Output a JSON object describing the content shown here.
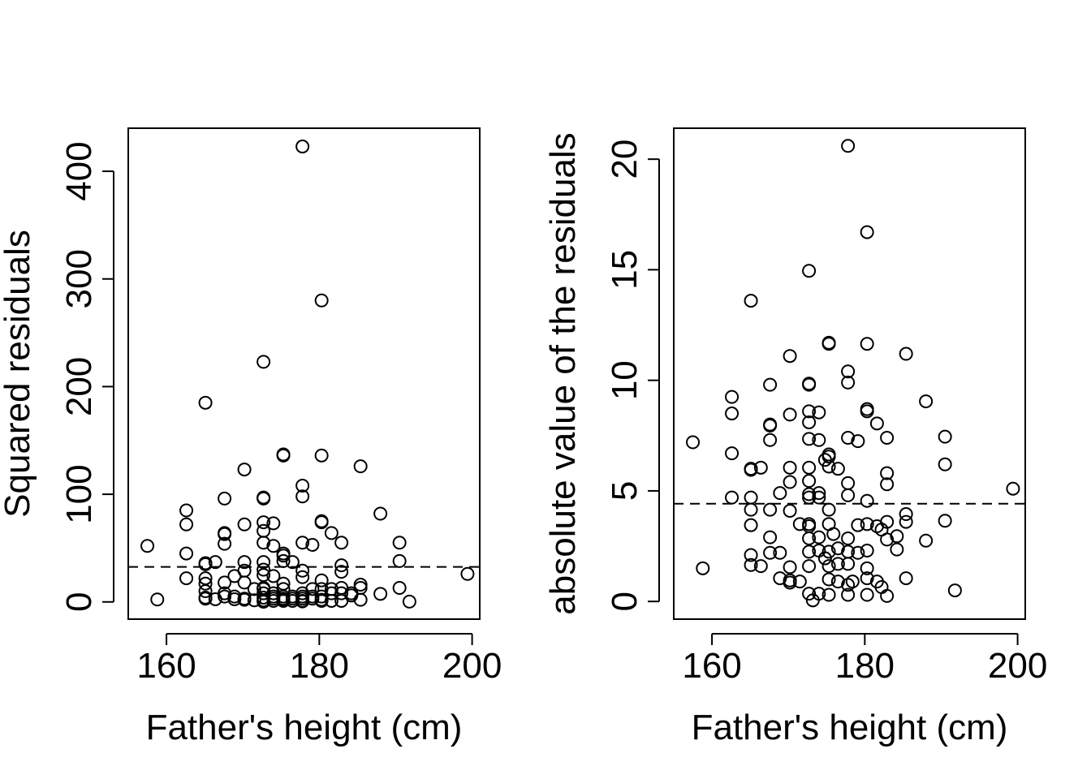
{
  "chart_data": [
    {
      "type": "scatter",
      "xlabel": "Father's height (cm)",
      "ylabel": "Squared residuals",
      "xlim": [
        155,
        201
      ],
      "ylim": [
        -16,
        440
      ],
      "xticks": [
        160,
        180,
        200
      ],
      "yticks": [
        0,
        100,
        200,
        300,
        400
      ],
      "xtick_labels": [
        "160",
        "180",
        "200"
      ],
      "ytick_labels": [
        "0",
        "100",
        "200",
        "300",
        "400"
      ],
      "reference_line": {
        "style": "dashed",
        "y": 32.5
      },
      "grid": false,
      "legend": "none",
      "marker": "open-circle",
      "points": [
        [
          157.5,
          52
        ],
        [
          158.8,
          2.3
        ],
        [
          162.6,
          85
        ],
        [
          162.6,
          72
        ],
        [
          162.6,
          45
        ],
        [
          162.6,
          22
        ],
        [
          165.1,
          185
        ],
        [
          165.1,
          36
        ],
        [
          165.1,
          35
        ],
        [
          165.1,
          22
        ],
        [
          165.1,
          17
        ],
        [
          165.1,
          10
        ],
        [
          165.1,
          4
        ],
        [
          165.1,
          3
        ],
        [
          166.4,
          37
        ],
        [
          166.4,
          2.5
        ],
        [
          167.6,
          96
        ],
        [
          167.6,
          64
        ],
        [
          167.6,
          63
        ],
        [
          167.6,
          54
        ],
        [
          167.6,
          18
        ],
        [
          167.6,
          8
        ],
        [
          167.6,
          5
        ],
        [
          168.9,
          24
        ],
        [
          168.9,
          5
        ],
        [
          168.9,
          2.5
        ],
        [
          170.2,
          123
        ],
        [
          170.2,
          72
        ],
        [
          170.2,
          37
        ],
        [
          170.2,
          29
        ],
        [
          170.2,
          18
        ],
        [
          170.2,
          3
        ],
        [
          170.2,
          2
        ],
        [
          171.5,
          12
        ],
        [
          171.5,
          1.5
        ],
        [
          172.7,
          223
        ],
        [
          172.7,
          97
        ],
        [
          172.7,
          96
        ],
        [
          172.7,
          74
        ],
        [
          172.7,
          66
        ],
        [
          172.7,
          55
        ],
        [
          172.7,
          37
        ],
        [
          172.7,
          30
        ],
        [
          172.7,
          25
        ],
        [
          172.7,
          13
        ],
        [
          172.7,
          12
        ],
        [
          172.7,
          8
        ],
        [
          172.7,
          4
        ],
        [
          172.7,
          1.5
        ],
        [
          172.7,
          0.2
        ],
        [
          174,
          73
        ],
        [
          174,
          52
        ],
        [
          174,
          24
        ],
        [
          174,
          8
        ],
        [
          174,
          5
        ],
        [
          174,
          3
        ],
        [
          174,
          1
        ],
        [
          175.3,
          137
        ],
        [
          175.3,
          136
        ],
        [
          175.3,
          45
        ],
        [
          175.3,
          43
        ],
        [
          175.3,
          38
        ],
        [
          175.3,
          17
        ],
        [
          175.3,
          12
        ],
        [
          175.3,
          5
        ],
        [
          175.3,
          3
        ],
        [
          175.3,
          2
        ],
        [
          175.3,
          1
        ],
        [
          176.5,
          37
        ],
        [
          176.5,
          5
        ],
        [
          176.5,
          3
        ],
        [
          176.5,
          1
        ],
        [
          177.8,
          423
        ],
        [
          177.8,
          108
        ],
        [
          177.8,
          98
        ],
        [
          177.8,
          55
        ],
        [
          177.8,
          29
        ],
        [
          177.8,
          23
        ],
        [
          177.8,
          8
        ],
        [
          177.8,
          5
        ],
        [
          177.8,
          3
        ],
        [
          177.8,
          1
        ],
        [
          177.8,
          0.5
        ],
        [
          179.1,
          53
        ],
        [
          179.1,
          12
        ],
        [
          179.1,
          5
        ],
        [
          179.1,
          3
        ],
        [
          180.3,
          280
        ],
        [
          180.3,
          136
        ],
        [
          180.3,
          75
        ],
        [
          180.3,
          74
        ],
        [
          180.3,
          20
        ],
        [
          180.3,
          12
        ],
        [
          180.3,
          5
        ],
        [
          180.3,
          2
        ],
        [
          180.3,
          1
        ],
        [
          181.6,
          64
        ],
        [
          181.6,
          12
        ],
        [
          181.6,
          8
        ],
        [
          181.6,
          1
        ],
        [
          182.9,
          55
        ],
        [
          182.9,
          34
        ],
        [
          182.9,
          28
        ],
        [
          182.9,
          13
        ],
        [
          182.9,
          8
        ],
        [
          182.9,
          1
        ],
        [
          184.2,
          8
        ],
        [
          184.2,
          6
        ],
        [
          185.4,
          126
        ],
        [
          185.4,
          16
        ],
        [
          185.4,
          13
        ],
        [
          185.4,
          2
        ],
        [
          188,
          82
        ],
        [
          188,
          7.5
        ],
        [
          190.5,
          55
        ],
        [
          190.5,
          38
        ],
        [
          190.5,
          13
        ],
        [
          191.8,
          0.3
        ],
        [
          199.4,
          26
        ]
      ]
    },
    {
      "type": "scatter",
      "xlabel": "Father's height (cm)",
      "ylabel": "absolute value of the residuals",
      "xlim": [
        155,
        201
      ],
      "ylim": [
        -0.8,
        21.4
      ],
      "xticks": [
        160,
        180,
        200
      ],
      "yticks": [
        0,
        5,
        10,
        15,
        20
      ],
      "xtick_labels": [
        "160",
        "180",
        "200"
      ],
      "ytick_labels": [
        "0",
        "5",
        "10",
        "15",
        "20"
      ],
      "reference_line": {
        "style": "dashed",
        "y": 4.42
      },
      "grid": false,
      "legend": "none",
      "marker": "open-circle",
      "points": [
        [
          157.5,
          7.2
        ],
        [
          158.8,
          1.5
        ],
        [
          162.6,
          9.25
        ],
        [
          162.6,
          8.5
        ],
        [
          162.6,
          6.7
        ],
        [
          162.6,
          4.7
        ],
        [
          165.1,
          13.6
        ],
        [
          165.1,
          6
        ],
        [
          165.1,
          5.95
        ],
        [
          165.1,
          4.7
        ],
        [
          165.1,
          4.15
        ],
        [
          165.1,
          3.45
        ],
        [
          165.1,
          2.1
        ],
        [
          165.1,
          1.65
        ],
        [
          166.4,
          6.05
        ],
        [
          166.4,
          1.6
        ],
        [
          167.6,
          9.8
        ],
        [
          167.6,
          8
        ],
        [
          167.6,
          7.95
        ],
        [
          167.6,
          7.3
        ],
        [
          167.6,
          4.15
        ],
        [
          167.6,
          2.9
        ],
        [
          167.6,
          2.2
        ],
        [
          168.9,
          4.9
        ],
        [
          168.9,
          2.2
        ],
        [
          168.9,
          1.05
        ],
        [
          170.2,
          11.1
        ],
        [
          170.2,
          8.45
        ],
        [
          170.2,
          6.05
        ],
        [
          170.2,
          5.4
        ],
        [
          170.2,
          4.1
        ],
        [
          170.2,
          1.55
        ],
        [
          170.2,
          0.95
        ],
        [
          170.2,
          0.85
        ],
        [
          171.5,
          3.5
        ],
        [
          171.5,
          0.9
        ],
        [
          172.7,
          14.95
        ],
        [
          172.7,
          9.85
        ],
        [
          172.7,
          9.8
        ],
        [
          172.7,
          8.6
        ],
        [
          172.7,
          8.1
        ],
        [
          172.7,
          7.35
        ],
        [
          172.7,
          6.05
        ],
        [
          172.7,
          5.45
        ],
        [
          172.7,
          4.85
        ],
        [
          172.7,
          4.7
        ],
        [
          172.7,
          3.5
        ],
        [
          172.7,
          3.4
        ],
        [
          172.7,
          2.85
        ],
        [
          172.7,
          2.25
        ],
        [
          172.7,
          1.6
        ],
        [
          172.7,
          0.35
        ],
        [
          173.2,
          0.05
        ],
        [
          174,
          8.55
        ],
        [
          174,
          7.3
        ],
        [
          174,
          4.9
        ],
        [
          174,
          4.7
        ],
        [
          174,
          2.9
        ],
        [
          174,
          2.3
        ],
        [
          174,
          0.35
        ],
        [
          174.8,
          6.4
        ],
        [
          174.8,
          1.95
        ],
        [
          175.3,
          11.7
        ],
        [
          175.3,
          11.65
        ],
        [
          175.3,
          6.65
        ],
        [
          175.3,
          6.55
        ],
        [
          175.3,
          6.1
        ],
        [
          175.3,
          4.15
        ],
        [
          175.3,
          3.5
        ],
        [
          175.3,
          2.25
        ],
        [
          175.3,
          1.6
        ],
        [
          175.3,
          1
        ],
        [
          175.3,
          0.3
        ],
        [
          175.9,
          3.05
        ],
        [
          176.5,
          6
        ],
        [
          176.5,
          2.4
        ],
        [
          176.5,
          1.7
        ],
        [
          176.5,
          0.9
        ],
        [
          177.8,
          20.6
        ],
        [
          177.8,
          10.4
        ],
        [
          177.8,
          9.9
        ],
        [
          177.8,
          7.4
        ],
        [
          177.8,
          5.35
        ],
        [
          177.8,
          4.8
        ],
        [
          177.8,
          2.85
        ],
        [
          177.8,
          2.25
        ],
        [
          177.8,
          1.7
        ],
        [
          177.8,
          0.75
        ],
        [
          177.8,
          0.3
        ],
        [
          178.4,
          0.9
        ],
        [
          179.1,
          7.25
        ],
        [
          179.1,
          3.45
        ],
        [
          179.1,
          2.2
        ],
        [
          180.3,
          16.7
        ],
        [
          180.3,
          11.65
        ],
        [
          180.3,
          8.7
        ],
        [
          180.3,
          8.6
        ],
        [
          180.3,
          4.55
        ],
        [
          180.3,
          3.5
        ],
        [
          180.3,
          2.3
        ],
        [
          180.3,
          1.5
        ],
        [
          180.3,
          1.05
        ],
        [
          180.3,
          0.3
        ],
        [
          181.6,
          8.05
        ],
        [
          181.6,
          3.4
        ],
        [
          181.6,
          0.9
        ],
        [
          182.2,
          3.25
        ],
        [
          182.2,
          0.65
        ],
        [
          182.9,
          7.4
        ],
        [
          182.9,
          5.8
        ],
        [
          182.9,
          5.3
        ],
        [
          182.9,
          3.6
        ],
        [
          182.9,
          2.8
        ],
        [
          182.9,
          0.25
        ],
        [
          184.2,
          2.95
        ],
        [
          184.2,
          2.35
        ],
        [
          185.4,
          11.2
        ],
        [
          185.4,
          3.95
        ],
        [
          185.4,
          3.6
        ],
        [
          185.4,
          1.05
        ],
        [
          188,
          9.05
        ],
        [
          188,
          2.75
        ],
        [
          190.5,
          7.45
        ],
        [
          190.5,
          6.2
        ],
        [
          190.5,
          3.65
        ],
        [
          191.8,
          0.5
        ],
        [
          199.4,
          5.1
        ]
      ]
    }
  ]
}
